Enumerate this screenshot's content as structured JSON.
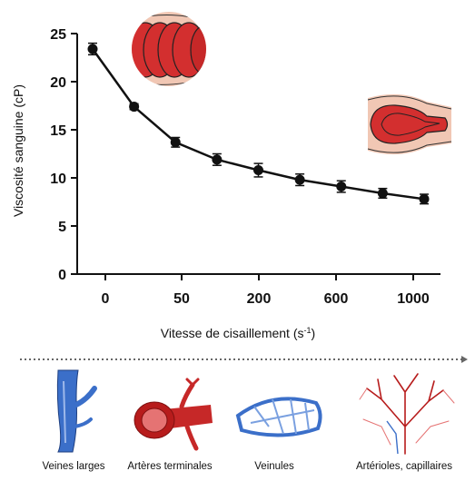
{
  "chart_data": {
    "type": "line",
    "xlabel": "Vitesse de cisaillement (s",
    "xlabel_sup": "-1",
    "xlabel_end": ")",
    "ylabel": "Viscosité sanguine (cP)",
    "ylim": [
      0,
      25
    ],
    "yticks": [
      "0",
      "5",
      "10",
      "15",
      "20",
      "25"
    ],
    "xtick_labels": [
      "0",
      "50",
      "200",
      "600",
      "1000"
    ],
    "series": [
      {
        "values": [
          23.4,
          17.4,
          13.7,
          11.9,
          10.8,
          9.8,
          9.1,
          8.4,
          7.8
        ],
        "errors": [
          0.6,
          0.3,
          0.5,
          0.6,
          0.7,
          0.6,
          0.6,
          0.5,
          0.5
        ]
      }
    ],
    "grid": false
  },
  "vessels": [
    {
      "label": "Veines larges"
    },
    {
      "label": "Artères terminales"
    },
    {
      "label": "Veinules"
    },
    {
      "label": "Artérioles, capillaires"
    }
  ],
  "colors": {
    "line": "#111111",
    "rbc": "#d32f2f",
    "vessel_blue": "#3b6fc9",
    "vessel_red": "#c62828",
    "tissue": "#f1c7b4"
  }
}
